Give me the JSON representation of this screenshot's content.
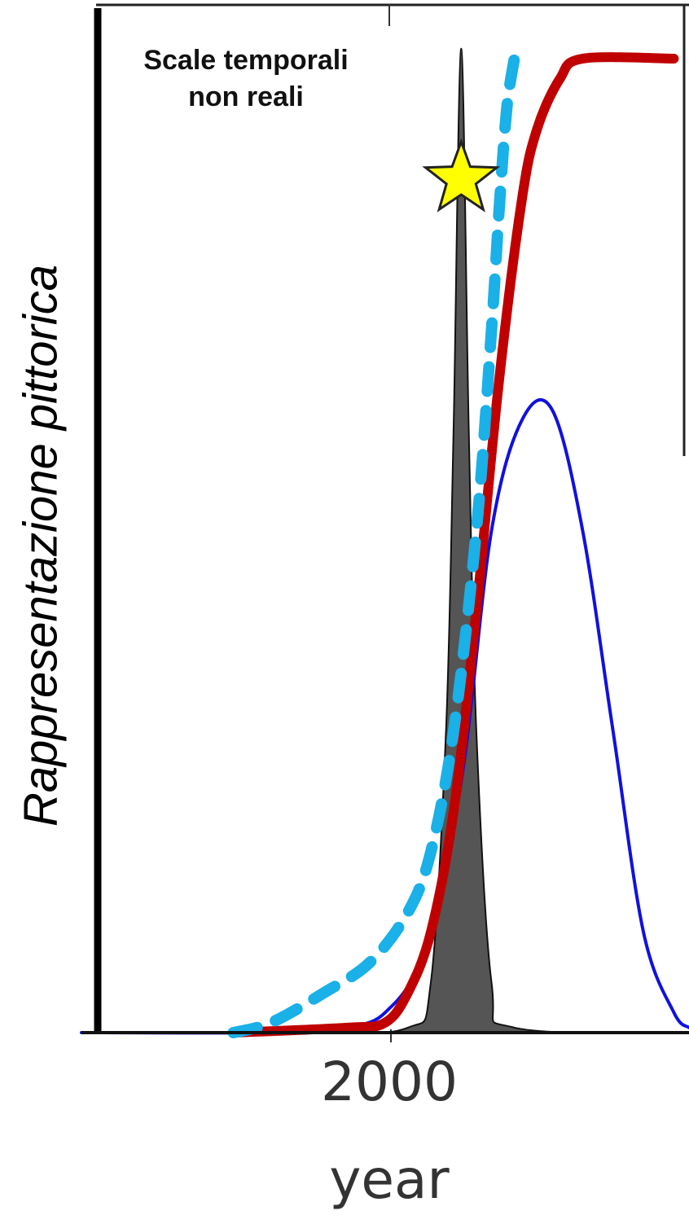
{
  "chart_data": {
    "type": "line",
    "title": "",
    "annotation": [
      "Scale temporali",
      "non reali"
    ],
    "ylabel": "Rappresentazione pittorica",
    "xlabel": "year",
    "x_ticks": [
      "2000"
    ],
    "partial_tick_text": ")",
    "star_marker": {
      "x": 2000,
      "y": 0.85
    },
    "x_range": [
      1950,
      2030
    ],
    "y_range": [
      0,
      1
    ],
    "series": [
      {
        "style": "filled-peak",
        "color": "#555555",
        "points": [
          [
            1950,
            0
          ],
          [
            1980,
            0
          ],
          [
            1993,
            0.005
          ],
          [
            1996,
            0.05
          ],
          [
            1998,
            0.3
          ],
          [
            1999,
            0.6
          ],
          [
            2000,
            0.98
          ],
          [
            2001,
            0.6
          ],
          [
            2002,
            0.3
          ],
          [
            2004,
            0.05
          ],
          [
            2007,
            0.005
          ],
          [
            2030,
            0
          ]
        ]
      },
      {
        "style": "thin",
        "color": "#1111dd",
        "points": [
          [
            1950,
            0
          ],
          [
            1980,
            0
          ],
          [
            1985,
            0.005
          ],
          [
            1990,
            0.02
          ],
          [
            1995,
            0.08
          ],
          [
            2000,
            0.25
          ],
          [
            2004,
            0.5
          ],
          [
            2008,
            0.61
          ],
          [
            2012,
            0.62
          ],
          [
            2016,
            0.5
          ],
          [
            2020,
            0.3
          ],
          [
            2024,
            0.1
          ],
          [
            2028,
            0.02
          ],
          [
            2030,
            0.005
          ]
        ]
      },
      {
        "style": "thick",
        "color": "#c00000",
        "points": [
          [
            1970,
            0
          ],
          [
            1985,
            0.005
          ],
          [
            1990,
            0.01
          ],
          [
            1993,
            0.04
          ],
          [
            1996,
            0.1
          ],
          [
            1999,
            0.22
          ],
          [
            2002,
            0.42
          ],
          [
            2005,
            0.65
          ],
          [
            2008,
            0.83
          ],
          [
            2010,
            0.9
          ],
          [
            2013,
            0.95
          ],
          [
            2016,
            0.97
          ],
          [
            2028,
            0.97
          ]
        ]
      },
      {
        "style": "dashed",
        "color": "#1ab0e8",
        "points": [
          [
            1970,
            0
          ],
          [
            1975,
            0.01
          ],
          [
            1982,
            0.04
          ],
          [
            1988,
            0.07
          ],
          [
            1993,
            0.12
          ],
          [
            1996,
            0.18
          ],
          [
            1999,
            0.3
          ],
          [
            2002,
            0.5
          ],
          [
            2004,
            0.7
          ],
          [
            2005,
            0.82
          ],
          [
            2006,
            0.92
          ],
          [
            2007,
            0.97
          ]
        ]
      }
    ]
  }
}
